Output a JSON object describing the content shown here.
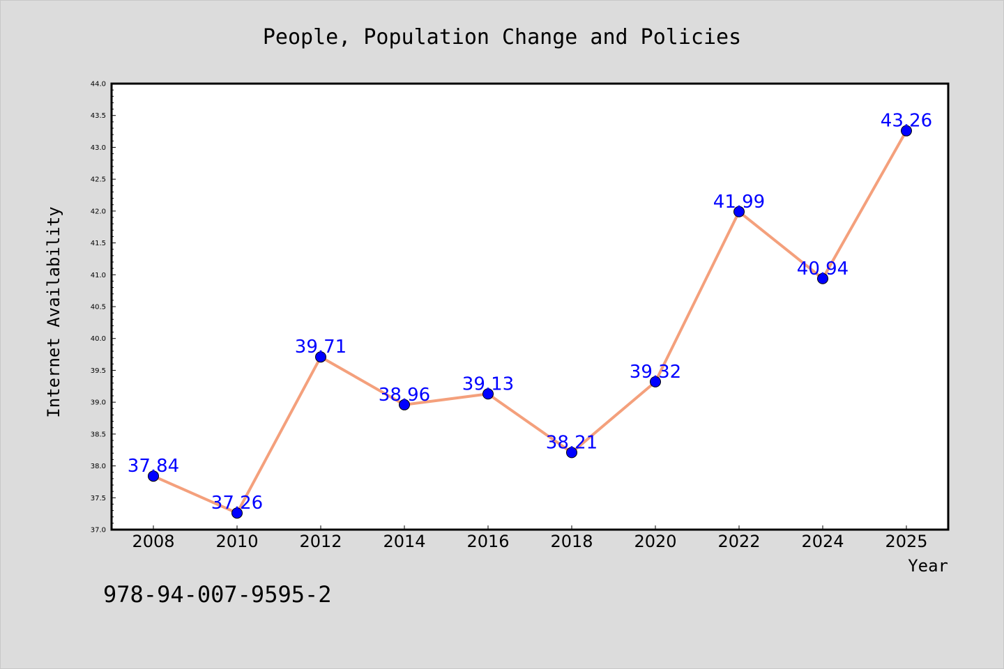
{
  "page": {
    "background": "#dcdcdc",
    "footer_code": "978-94-007-9595-2"
  },
  "chart_data": {
    "type": "line",
    "title": "People, Population Change and Policies",
    "xlabel": "Year",
    "ylabel": "Internet Availability",
    "x": [
      "2008",
      "2010",
      "2012",
      "2014",
      "2016",
      "2018",
      "2020",
      "2022",
      "2024",
      "2025"
    ],
    "series": [
      {
        "values": [
          37.84,
          37.26,
          39.71,
          38.96,
          39.13,
          38.21,
          39.32,
          41.99,
          40.94,
          43.26
        ],
        "data_labels": [
          "37.84",
          "37.26",
          "39.71",
          "38.96",
          "39.13",
          "38.21",
          "39.32",
          "41.99",
          "40.94",
          "43.26"
        ],
        "line_color": "#f4a07c",
        "marker_color": "#0000ff",
        "label_color": "#0000ff"
      }
    ],
    "ylim": [
      37.0,
      44.0
    ],
    "yticks": [
      "37.0",
      "37.5",
      "38.0",
      "38.5",
      "39.0",
      "39.5",
      "40.0",
      "40.5",
      "41.0",
      "41.5",
      "42.0",
      "42.5",
      "43.0",
      "43.5",
      "44.0"
    ],
    "grid": false,
    "legend": "none",
    "plot_background": "#ffffff"
  }
}
